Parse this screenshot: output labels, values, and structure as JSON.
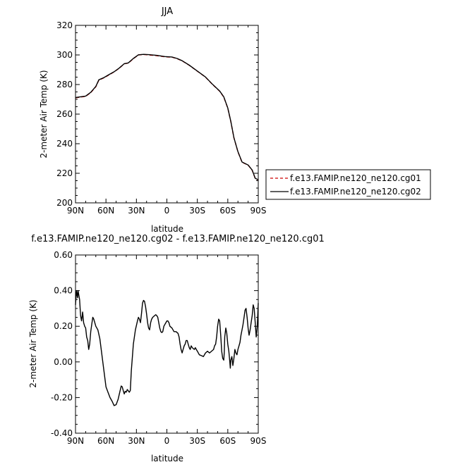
{
  "chart_data": [
    {
      "type": "line",
      "title": "JJA",
      "xlabel": "latitude",
      "ylabel": "2-meter Air Temp (K)",
      "xlim": [
        90,
        -90
      ],
      "ylim": [
        200,
        320
      ],
      "x_ticks": [
        90,
        60,
        30,
        0,
        -30,
        -60,
        -90
      ],
      "x_tick_labels": [
        "90N",
        "60N",
        "30N",
        "0",
        "30S",
        "60S",
        "90S"
      ],
      "y_ticks": [
        200,
        220,
        240,
        260,
        280,
        300,
        320
      ],
      "y_tick_labels": [
        "200",
        "220",
        "240",
        "260",
        "280",
        "300",
        "320"
      ],
      "legend": "right",
      "series": [
        {
          "name": "f.e13.FAMIP.ne120_ne120.cg01",
          "color": "#cc0000",
          "style": "dashed",
          "points": [
            [
              90,
              271.0
            ],
            [
              85,
              271.5
            ],
            [
              80,
              272.0
            ],
            [
              75,
              274.5
            ],
            [
              70,
              278.5
            ],
            [
              67,
              283.0
            ],
            [
              62,
              284.5
            ],
            [
              57,
              286.5
            ],
            [
              52,
              288.5
            ],
            [
              47,
              291.0
            ],
            [
              42,
              294.0
            ],
            [
              38,
              294.5
            ],
            [
              33,
              297.5
            ],
            [
              28,
              300.0
            ],
            [
              23,
              300.3
            ],
            [
              18,
              300.0
            ],
            [
              10,
              299.5
            ],
            [
              2,
              298.7
            ],
            [
              -5,
              298.5
            ],
            [
              -10,
              297.5
            ],
            [
              -15,
              296.0
            ],
            [
              -22,
              293.0
            ],
            [
              -30,
              289.0
            ],
            [
              -38,
              285.0
            ],
            [
              -45,
              280.0
            ],
            [
              -52,
              275.5
            ],
            [
              -56,
              271.5
            ],
            [
              -60,
              264.0
            ],
            [
              -63,
              255.0
            ],
            [
              -66,
              244.0
            ],
            [
              -70,
              234.5
            ],
            [
              -74,
              227.5
            ],
            [
              -80,
              225.5
            ],
            [
              -84,
              222.0
            ],
            [
              -87,
              216.5
            ],
            [
              -90,
              215.5
            ]
          ]
        },
        {
          "name": "f.e13.FAMIP.ne120_ne120.cg02",
          "color": "#000000",
          "style": "solid",
          "points": [
            [
              90,
              271.2
            ],
            [
              85,
              271.7
            ],
            [
              80,
              272.2
            ],
            [
              75,
              274.7
            ],
            [
              70,
              278.7
            ],
            [
              67,
              283.2
            ],
            [
              62,
              284.7
            ],
            [
              57,
              286.7
            ],
            [
              52,
              288.6
            ],
            [
              47,
              291.1
            ],
            [
              42,
              294.1
            ],
            [
              38,
              294.6
            ],
            [
              33,
              297.6
            ],
            [
              28,
              300.1
            ],
            [
              23,
              300.4
            ],
            [
              18,
              300.2
            ],
            [
              10,
              299.7
            ],
            [
              2,
              298.9
            ],
            [
              -5,
              298.6
            ],
            [
              -10,
              297.6
            ],
            [
              -15,
              296.1
            ],
            [
              -22,
              293.1
            ],
            [
              -30,
              289.1
            ],
            [
              -38,
              285.1
            ],
            [
              -45,
              280.1
            ],
            [
              -52,
              275.6
            ],
            [
              -56,
              271.7
            ],
            [
              -60,
              264.2
            ],
            [
              -63,
              255.1
            ],
            [
              -66,
              244.1
            ],
            [
              -70,
              234.6
            ],
            [
              -74,
              227.6
            ],
            [
              -80,
              225.6
            ],
            [
              -84,
              222.2
            ],
            [
              -87,
              216.6
            ],
            [
              -90,
              215.6
            ]
          ]
        }
      ]
    },
    {
      "type": "line",
      "title": "f.e13.FAMIP.ne120_ne120.cg02 - f.e13.FAMIP.ne120_ne120.cg01",
      "xlabel": "latitude",
      "ylabel": "2-meter Air Temp (K)",
      "xlim": [
        90,
        -90
      ],
      "ylim": [
        -0.4,
        0.6
      ],
      "x_ticks": [
        90,
        60,
        30,
        0,
        -30,
        -60,
        -90
      ],
      "x_tick_labels": [
        "90N",
        "60N",
        "30N",
        "0",
        "30S",
        "60S",
        "90S"
      ],
      "y_ticks": [
        -0.4,
        -0.2,
        0.0,
        0.2,
        0.4,
        0.6
      ],
      "y_tick_labels": [
        "-0.40",
        "-0.20",
        "0.00",
        "0.20",
        "0.40",
        "0.60"
      ],
      "series": [
        {
          "color": "#000000",
          "style": "solid",
          "points": [
            [
              90,
              0.32
            ],
            [
              89,
              0.4
            ],
            [
              88,
              0.36
            ],
            [
              87.5,
              0.4
            ],
            [
              86,
              0.35
            ],
            [
              85,
              0.26
            ],
            [
              84,
              0.23
            ],
            [
              83,
              0.28
            ],
            [
              82,
              0.22
            ],
            [
              81,
              0.2
            ],
            [
              80,
              0.19
            ],
            [
              79,
              0.14
            ],
            [
              78,
              0.12
            ],
            [
              77,
              0.07
            ],
            [
              76,
              0.1
            ],
            [
              75,
              0.17
            ],
            [
              74,
              0.21
            ],
            [
              73,
              0.25
            ],
            [
              72,
              0.24
            ],
            [
              70,
              0.2
            ],
            [
              68,
              0.18
            ],
            [
              66,
              0.13
            ],
            [
              64,
              0.04
            ],
            [
              62,
              -0.05
            ],
            [
              60,
              -0.14
            ],
            [
              58,
              -0.17
            ],
            [
              56,
              -0.2
            ],
            [
              54,
              -0.22
            ],
            [
              52,
              -0.245
            ],
            [
              50,
              -0.24
            ],
            [
              48,
              -0.21
            ],
            [
              46,
              -0.16
            ],
            [
              45,
              -0.135
            ],
            [
              44,
              -0.14
            ],
            [
              43,
              -0.16
            ],
            [
              42,
              -0.18
            ],
            [
              41,
              -0.165
            ],
            [
              40,
              -0.17
            ],
            [
              39,
              -0.155
            ],
            [
              37,
              -0.17
            ],
            [
              36,
              -0.16
            ],
            [
              35,
              -0.05
            ],
            [
              33,
              0.1
            ],
            [
              31,
              0.18
            ],
            [
              29,
              0.23
            ],
            [
              28,
              0.25
            ],
            [
              27,
              0.24
            ],
            [
              26,
              0.22
            ],
            [
              25,
              0.27
            ],
            [
              24,
              0.33
            ],
            [
              23,
              0.345
            ],
            [
              22,
              0.34
            ],
            [
              21,
              0.31
            ],
            [
              20,
              0.27
            ],
            [
              19,
              0.22
            ],
            [
              18,
              0.19
            ],
            [
              17,
              0.18
            ],
            [
              16,
              0.22
            ],
            [
              15,
              0.24
            ],
            [
              14,
              0.25
            ],
            [
              12,
              0.26
            ],
            [
              11,
              0.265
            ],
            [
              10,
              0.26
            ],
            [
              9,
              0.25
            ],
            [
              8,
              0.22
            ],
            [
              7,
              0.19
            ],
            [
              6,
              0.17
            ],
            [
              5,
              0.165
            ],
            [
              4,
              0.17
            ],
            [
              3,
              0.2
            ],
            [
              2,
              0.21
            ],
            [
              1,
              0.22
            ],
            [
              0,
              0.23
            ],
            [
              -1,
              0.23
            ],
            [
              -2,
              0.22
            ],
            [
              -3,
              0.2
            ],
            [
              -5,
              0.19
            ],
            [
              -7,
              0.17
            ],
            [
              -9,
              0.17
            ],
            [
              -11,
              0.16
            ],
            [
              -12,
              0.14
            ],
            [
              -13,
              0.1
            ],
            [
              -14,
              0.07
            ],
            [
              -15,
              0.05
            ],
            [
              -16,
              0.07
            ],
            [
              -17,
              0.09
            ],
            [
              -18,
              0.1
            ],
            [
              -19,
              0.12
            ],
            [
              -20,
              0.12
            ],
            [
              -21,
              0.1
            ],
            [
              -22,
              0.08
            ],
            [
              -23,
              0.07
            ],
            [
              -24,
              0.09
            ],
            [
              -25,
              0.08
            ],
            [
              -27,
              0.07
            ],
            [
              -28,
              0.08
            ],
            [
              -29,
              0.07
            ],
            [
              -30,
              0.06
            ],
            [
              -32,
              0.04
            ],
            [
              -34,
              0.035
            ],
            [
              -36,
              0.03
            ],
            [
              -38,
              0.05
            ],
            [
              -40,
              0.06
            ],
            [
              -42,
              0.05
            ],
            [
              -44,
              0.06
            ],
            [
              -46,
              0.07
            ],
            [
              -47,
              0.09
            ],
            [
              -48,
              0.1
            ],
            [
              -49,
              0.14
            ],
            [
              -50,
              0.2
            ],
            [
              -51,
              0.24
            ],
            [
              -52,
              0.23
            ],
            [
              -53,
              0.15
            ],
            [
              -54,
              0.06
            ],
            [
              -55,
              0.02
            ],
            [
              -56,
              0.01
            ],
            [
              -56.5,
              0.05
            ],
            [
              -57,
              0.14
            ],
            [
              -58,
              0.19
            ],
            [
              -59,
              0.16
            ],
            [
              -60,
              0.1
            ],
            [
              -61,
              0.06
            ],
            [
              -62,
              0.0
            ],
            [
              -62.5,
              -0.035
            ],
            [
              -63,
              0.01
            ],
            [
              -64,
              0.03
            ],
            [
              -65,
              -0.02
            ],
            [
              -66,
              0.02
            ],
            [
              -67,
              0.07
            ],
            [
              -68,
              0.05
            ],
            [
              -69,
              0.04
            ],
            [
              -70,
              0.07
            ],
            [
              -71,
              0.09
            ],
            [
              -72,
              0.11
            ],
            [
              -73,
              0.15
            ],
            [
              -74,
              0.18
            ],
            [
              -75,
              0.21
            ],
            [
              -76,
              0.25
            ],
            [
              -77,
              0.29
            ],
            [
              -78,
              0.3
            ],
            [
              -79,
              0.25
            ],
            [
              -80,
              0.19
            ],
            [
              -81,
              0.15
            ],
            [
              -82,
              0.18
            ],
            [
              -83,
              0.22
            ],
            [
              -84,
              0.26
            ],
            [
              -85,
              0.32
            ],
            [
              -86,
              0.3
            ],
            [
              -87,
              0.22
            ],
            [
              -88,
              0.14
            ],
            [
              -89,
              0.2
            ],
            [
              -90,
              0.33
            ]
          ]
        }
      ]
    }
  ]
}
